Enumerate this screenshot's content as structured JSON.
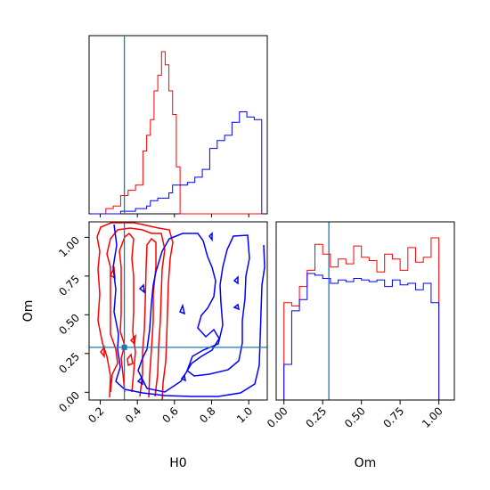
{
  "chart_data": {
    "type": "corner",
    "parameters": [
      "H0",
      "Om"
    ],
    "truths": {
      "H0": 0.33,
      "Om": 0.29
    },
    "colors": {
      "red_run": "#ff0000",
      "blue_run": "#0000ff",
      "truth": "#1f77b4"
    },
    "panels": [
      {
        "id": "hist_H0",
        "type": "histogram",
        "xlim": [
          0.14,
          1.1
        ],
        "bin_edges": [
          0.15,
          0.19,
          0.23,
          0.27,
          0.31,
          0.35,
          0.39,
          0.43,
          0.45,
          0.47,
          0.49,
          0.51,
          0.53,
          0.55,
          0.57,
          0.59,
          0.61,
          0.63,
          0.67,
          0.71,
          0.75,
          0.79,
          0.83,
          0.87,
          0.91,
          0.95,
          0.99,
          1.03,
          1.07
        ],
        "series": [
          {
            "name": "",
            "color": "#ff0000",
            "values": [
              0,
              0,
              2,
              3,
              7,
              9,
              11,
              24,
              30,
              36,
              47,
              53,
              62,
              57,
              47,
              38,
              18,
              0,
              0,
              0,
              0,
              0,
              0,
              0,
              0,
              0,
              0,
              0
            ]
          },
          {
            "name": "",
            "color": "#0000ff",
            "values": [
              0,
              0,
              0,
              0,
              1,
              1,
              2,
              2,
              3,
              5,
              5,
              6,
              6,
              6,
              8,
              11,
              11,
              11,
              12,
              14,
              17,
              25,
              28,
              30,
              35,
              39,
              37,
              36
            ]
          }
        ],
        "xtick_values": [
          0.2,
          0.4,
          0.6,
          0.8,
          1.0
        ]
      },
      {
        "id": "contour_Om_vs_H0",
        "type": "contour",
        "xlabel": "H0",
        "ylabel": "Om",
        "xlim": [
          0.14,
          1.1
        ],
        "ylim": [
          -0.05,
          1.1
        ],
        "xticks": [
          "0.2",
          "0.4",
          "0.6",
          "0.8",
          "1.0"
        ],
        "yticks": [
          "0.00",
          "0.25",
          "0.50",
          "0.75",
          "1.00"
        ],
        "xtick_values": [
          0.2,
          0.4,
          0.6,
          0.8,
          1.0
        ],
        "ytick_values": [
          0.0,
          0.25,
          0.5,
          0.75,
          1.0
        ]
      },
      {
        "id": "hist_Om",
        "type": "histogram",
        "xlabel": "Om",
        "xlim": [
          -0.05,
          1.1
        ],
        "xticks": [
          "0.00",
          "0.25",
          "0.50",
          "0.75",
          "1.00"
        ],
        "xtick_values": [
          0.0,
          0.25,
          0.5,
          0.75,
          1.0
        ],
        "bin_edges": [
          0.0,
          0.05,
          0.1,
          0.15,
          0.2,
          0.25,
          0.3,
          0.35,
          0.4,
          0.45,
          0.5,
          0.55,
          0.6,
          0.65,
          0.7,
          0.75,
          0.8,
          0.85,
          0.9,
          0.95,
          1.0
        ],
        "series": [
          {
            "name": "",
            "color": "#ff0000",
            "values": [
              60,
              58,
              70,
              80,
              96,
              90,
              82,
              87,
              84,
              95,
              88,
              86,
              79,
              90,
              87,
              80,
              94,
              85,
              88,
              100
            ]
          },
          {
            "name": "",
            "color": "#0000ff",
            "values": [
              22,
              55,
              62,
              78,
              77,
              75,
              72,
              74,
              73,
              75,
              74,
              73,
              74,
              70,
              74,
              71,
              72,
              68,
              72,
              60
            ]
          }
        ]
      }
    ]
  }
}
